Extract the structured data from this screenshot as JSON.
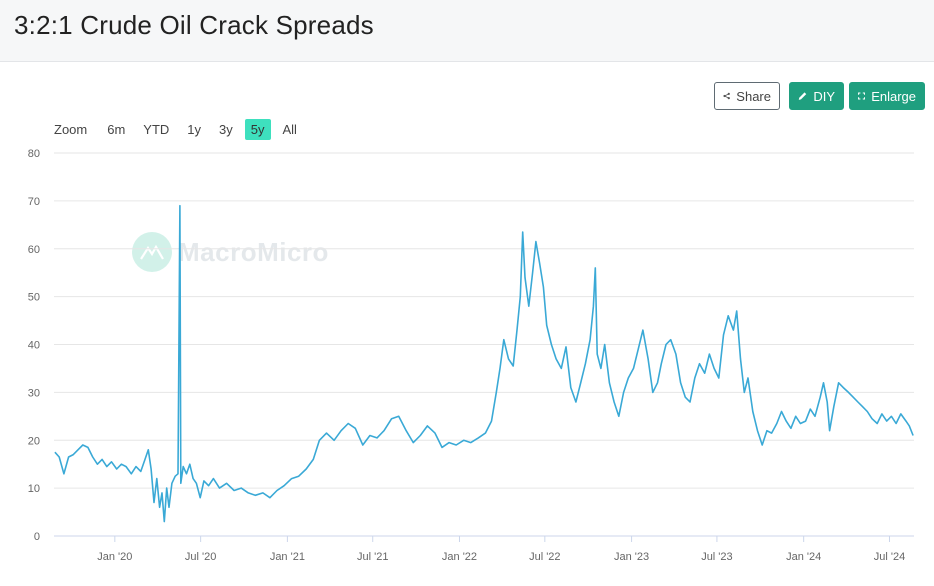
{
  "header": {
    "title": "3:2:1 Crude Oil Crack Spreads"
  },
  "toolbar": {
    "share_label": "Share",
    "diy_label": "DIY",
    "enlarge_label": "Enlarge"
  },
  "zoom": {
    "label": "Zoom",
    "options": [
      "6m",
      "YTD",
      "1y",
      "3y",
      "5y",
      "All"
    ],
    "active": "5y"
  },
  "watermark": {
    "text": "MacroMicro"
  },
  "colors": {
    "line": "#3aa9d6",
    "accent": "#1f9f7f",
    "zoom_active": "#3ee0be",
    "grid": "#e6e6e6"
  },
  "chart_data": {
    "type": "line",
    "title": "3:2:1 Crude Oil Crack Spreads",
    "xlabel": "",
    "ylabel": "",
    "ylim": [
      0,
      80
    ],
    "yticks": [
      0,
      10,
      20,
      30,
      40,
      50,
      60,
      70,
      80
    ],
    "xticks": [
      {
        "date": "2020-01-01",
        "label": "Jan '20"
      },
      {
        "date": "2020-07-01",
        "label": "Jul '20"
      },
      {
        "date": "2021-01-01",
        "label": "Jan '21"
      },
      {
        "date": "2021-07-01",
        "label": "Jul '21"
      },
      {
        "date": "2022-01-01",
        "label": "Jan '22"
      },
      {
        "date": "2022-07-01",
        "label": "Jul '22"
      },
      {
        "date": "2023-01-01",
        "label": "Jan '23"
      },
      {
        "date": "2023-07-01",
        "label": "Jul '23"
      },
      {
        "date": "2024-01-01",
        "label": "Jan '24"
      },
      {
        "date": "2024-07-01",
        "label": "Jul '24"
      }
    ],
    "grid": true,
    "series": [
      {
        "color": "#3aa9d6",
        "points": [
          [
            "2019-08-27",
            17.5
          ],
          [
            "2019-09-05",
            16.5
          ],
          [
            "2019-09-15",
            13.0
          ],
          [
            "2019-09-25",
            16.5
          ],
          [
            "2019-10-05",
            17.0
          ],
          [
            "2019-10-15",
            18.0
          ],
          [
            "2019-10-25",
            19.0
          ],
          [
            "2019-11-05",
            18.5
          ],
          [
            "2019-11-15",
            16.5
          ],
          [
            "2019-11-25",
            15.0
          ],
          [
            "2019-12-05",
            16.0
          ],
          [
            "2019-12-15",
            14.5
          ],
          [
            "2019-12-25",
            15.5
          ],
          [
            "2020-01-05",
            14.0
          ],
          [
            "2020-01-15",
            15.0
          ],
          [
            "2020-01-25",
            14.5
          ],
          [
            "2020-02-05",
            13.0
          ],
          [
            "2020-02-15",
            14.5
          ],
          [
            "2020-02-25",
            13.5
          ],
          [
            "2020-03-05",
            16.0
          ],
          [
            "2020-03-12",
            18.0
          ],
          [
            "2020-03-18",
            14.0
          ],
          [
            "2020-03-24",
            7.0
          ],
          [
            "2020-03-30",
            12.0
          ],
          [
            "2020-04-05",
            6.0
          ],
          [
            "2020-04-10",
            9.0
          ],
          [
            "2020-04-15",
            3.0
          ],
          [
            "2020-04-20",
            10.0
          ],
          [
            "2020-04-25",
            6.0
          ],
          [
            "2020-05-01",
            11.0
          ],
          [
            "2020-05-08",
            12.5
          ],
          [
            "2020-05-14",
            13.0
          ],
          [
            "2020-05-18",
            69.0
          ],
          [
            "2020-05-20",
            11.0
          ],
          [
            "2020-05-25",
            14.5
          ],
          [
            "2020-06-01",
            13.0
          ],
          [
            "2020-06-08",
            15.0
          ],
          [
            "2020-06-15",
            12.0
          ],
          [
            "2020-06-22",
            11.0
          ],
          [
            "2020-06-30",
            8.0
          ],
          [
            "2020-07-08",
            11.5
          ],
          [
            "2020-07-18",
            10.5
          ],
          [
            "2020-07-28",
            12.0
          ],
          [
            "2020-08-10",
            10.0
          ],
          [
            "2020-08-25",
            11.0
          ],
          [
            "2020-09-10",
            9.5
          ],
          [
            "2020-09-25",
            10.0
          ],
          [
            "2020-10-10",
            9.0
          ],
          [
            "2020-10-25",
            8.5
          ],
          [
            "2020-11-10",
            9.0
          ],
          [
            "2020-11-25",
            8.0
          ],
          [
            "2020-12-10",
            9.5
          ],
          [
            "2020-12-25",
            10.5
          ],
          [
            "2021-01-10",
            12.0
          ],
          [
            "2021-01-25",
            12.5
          ],
          [
            "2021-02-10",
            14.0
          ],
          [
            "2021-02-25",
            16.0
          ],
          [
            "2021-03-10",
            20.0
          ],
          [
            "2021-03-25",
            21.5
          ],
          [
            "2021-04-10",
            20.0
          ],
          [
            "2021-04-25",
            22.0
          ],
          [
            "2021-05-10",
            23.5
          ],
          [
            "2021-05-25",
            22.5
          ],
          [
            "2021-06-10",
            19.0
          ],
          [
            "2021-06-25",
            21.0
          ],
          [
            "2021-07-10",
            20.5
          ],
          [
            "2021-07-25",
            22.0
          ],
          [
            "2021-08-10",
            24.5
          ],
          [
            "2021-08-25",
            25.0
          ],
          [
            "2021-09-10",
            22.0
          ],
          [
            "2021-09-25",
            19.5
          ],
          [
            "2021-10-10",
            21.0
          ],
          [
            "2021-10-25",
            23.0
          ],
          [
            "2021-11-10",
            21.5
          ],
          [
            "2021-11-25",
            18.5
          ],
          [
            "2021-12-10",
            19.5
          ],
          [
            "2021-12-25",
            19.0
          ],
          [
            "2022-01-10",
            20.0
          ],
          [
            "2022-01-25",
            19.5
          ],
          [
            "2022-02-10",
            20.5
          ],
          [
            "2022-02-25",
            21.5
          ],
          [
            "2022-03-10",
            24.0
          ],
          [
            "2022-03-20",
            30.0
          ],
          [
            "2022-03-28",
            35.0
          ],
          [
            "2022-04-05",
            41.0
          ],
          [
            "2022-04-15",
            37.0
          ],
          [
            "2022-04-25",
            35.5
          ],
          [
            "2022-05-03",
            43.0
          ],
          [
            "2022-05-10",
            50.0
          ],
          [
            "2022-05-15",
            63.5
          ],
          [
            "2022-05-20",
            54.0
          ],
          [
            "2022-05-28",
            48.0
          ],
          [
            "2022-06-05",
            55.0
          ],
          [
            "2022-06-12",
            61.5
          ],
          [
            "2022-06-20",
            57.0
          ],
          [
            "2022-06-28",
            52.0
          ],
          [
            "2022-07-05",
            44.0
          ],
          [
            "2022-07-15",
            40.0
          ],
          [
            "2022-07-25",
            37.0
          ],
          [
            "2022-08-05",
            35.0
          ],
          [
            "2022-08-15",
            39.5
          ],
          [
            "2022-08-25",
            31.0
          ],
          [
            "2022-09-05",
            28.0
          ],
          [
            "2022-09-15",
            32.0
          ],
          [
            "2022-09-25",
            36.0
          ],
          [
            "2022-10-05",
            41.0
          ],
          [
            "2022-10-12",
            48.0
          ],
          [
            "2022-10-16",
            56.0
          ],
          [
            "2022-10-20",
            38.0
          ],
          [
            "2022-10-28",
            35.0
          ],
          [
            "2022-11-05",
            40.0
          ],
          [
            "2022-11-15",
            32.0
          ],
          [
            "2022-11-25",
            28.0
          ],
          [
            "2022-12-05",
            25.0
          ],
          [
            "2022-12-15",
            30.0
          ],
          [
            "2022-12-25",
            33.0
          ],
          [
            "2023-01-05",
            35.0
          ],
          [
            "2023-01-15",
            39.0
          ],
          [
            "2023-01-25",
            43.0
          ],
          [
            "2023-02-05",
            37.0
          ],
          [
            "2023-02-15",
            30.0
          ],
          [
            "2023-02-25",
            32.0
          ],
          [
            "2023-03-05",
            36.0
          ],
          [
            "2023-03-15",
            40.0
          ],
          [
            "2023-03-25",
            41.0
          ],
          [
            "2023-04-05",
            38.0
          ],
          [
            "2023-04-15",
            32.0
          ],
          [
            "2023-04-25",
            29.0
          ],
          [
            "2023-05-05",
            28.0
          ],
          [
            "2023-05-15",
            33.0
          ],
          [
            "2023-05-25",
            36.0
          ],
          [
            "2023-06-05",
            34.0
          ],
          [
            "2023-06-15",
            38.0
          ],
          [
            "2023-06-25",
            35.0
          ],
          [
            "2023-07-05",
            33.0
          ],
          [
            "2023-07-15",
            42.0
          ],
          [
            "2023-07-25",
            46.0
          ],
          [
            "2023-08-05",
            43.0
          ],
          [
            "2023-08-12",
            47.0
          ],
          [
            "2023-08-20",
            37.0
          ],
          [
            "2023-08-28",
            30.0
          ],
          [
            "2023-09-05",
            33.0
          ],
          [
            "2023-09-15",
            26.0
          ],
          [
            "2023-09-25",
            22.0
          ],
          [
            "2023-10-05",
            19.0
          ],
          [
            "2023-10-15",
            22.0
          ],
          [
            "2023-10-25",
            21.5
          ],
          [
            "2023-11-05",
            23.5
          ],
          [
            "2023-11-15",
            26.0
          ],
          [
            "2023-11-25",
            24.0
          ],
          [
            "2023-12-05",
            22.5
          ],
          [
            "2023-12-15",
            25.0
          ],
          [
            "2023-12-25",
            23.5
          ],
          [
            "2024-01-05",
            24.0
          ],
          [
            "2024-01-15",
            26.5
          ],
          [
            "2024-01-25",
            25.0
          ],
          [
            "2024-02-05",
            29.0
          ],
          [
            "2024-02-12",
            32.0
          ],
          [
            "2024-02-20",
            28.0
          ],
          [
            "2024-02-25",
            22.0
          ],
          [
            "2024-03-05",
            27.0
          ],
          [
            "2024-03-15",
            32.0
          ],
          [
            "2024-03-25",
            31.0
          ],
          [
            "2024-04-05",
            30.0
          ],
          [
            "2024-04-15",
            29.0
          ],
          [
            "2024-04-25",
            28.0
          ],
          [
            "2024-05-05",
            27.0
          ],
          [
            "2024-05-15",
            26.0
          ],
          [
            "2024-05-25",
            24.5
          ],
          [
            "2024-06-05",
            23.5
          ],
          [
            "2024-06-15",
            25.5
          ],
          [
            "2024-06-25",
            24.0
          ],
          [
            "2024-07-05",
            25.0
          ],
          [
            "2024-07-15",
            23.5
          ],
          [
            "2024-07-25",
            25.5
          ],
          [
            "2024-08-05",
            24.0
          ],
          [
            "2024-08-12",
            23.0
          ],
          [
            "2024-08-20",
            21.0
          ]
        ]
      }
    ]
  }
}
